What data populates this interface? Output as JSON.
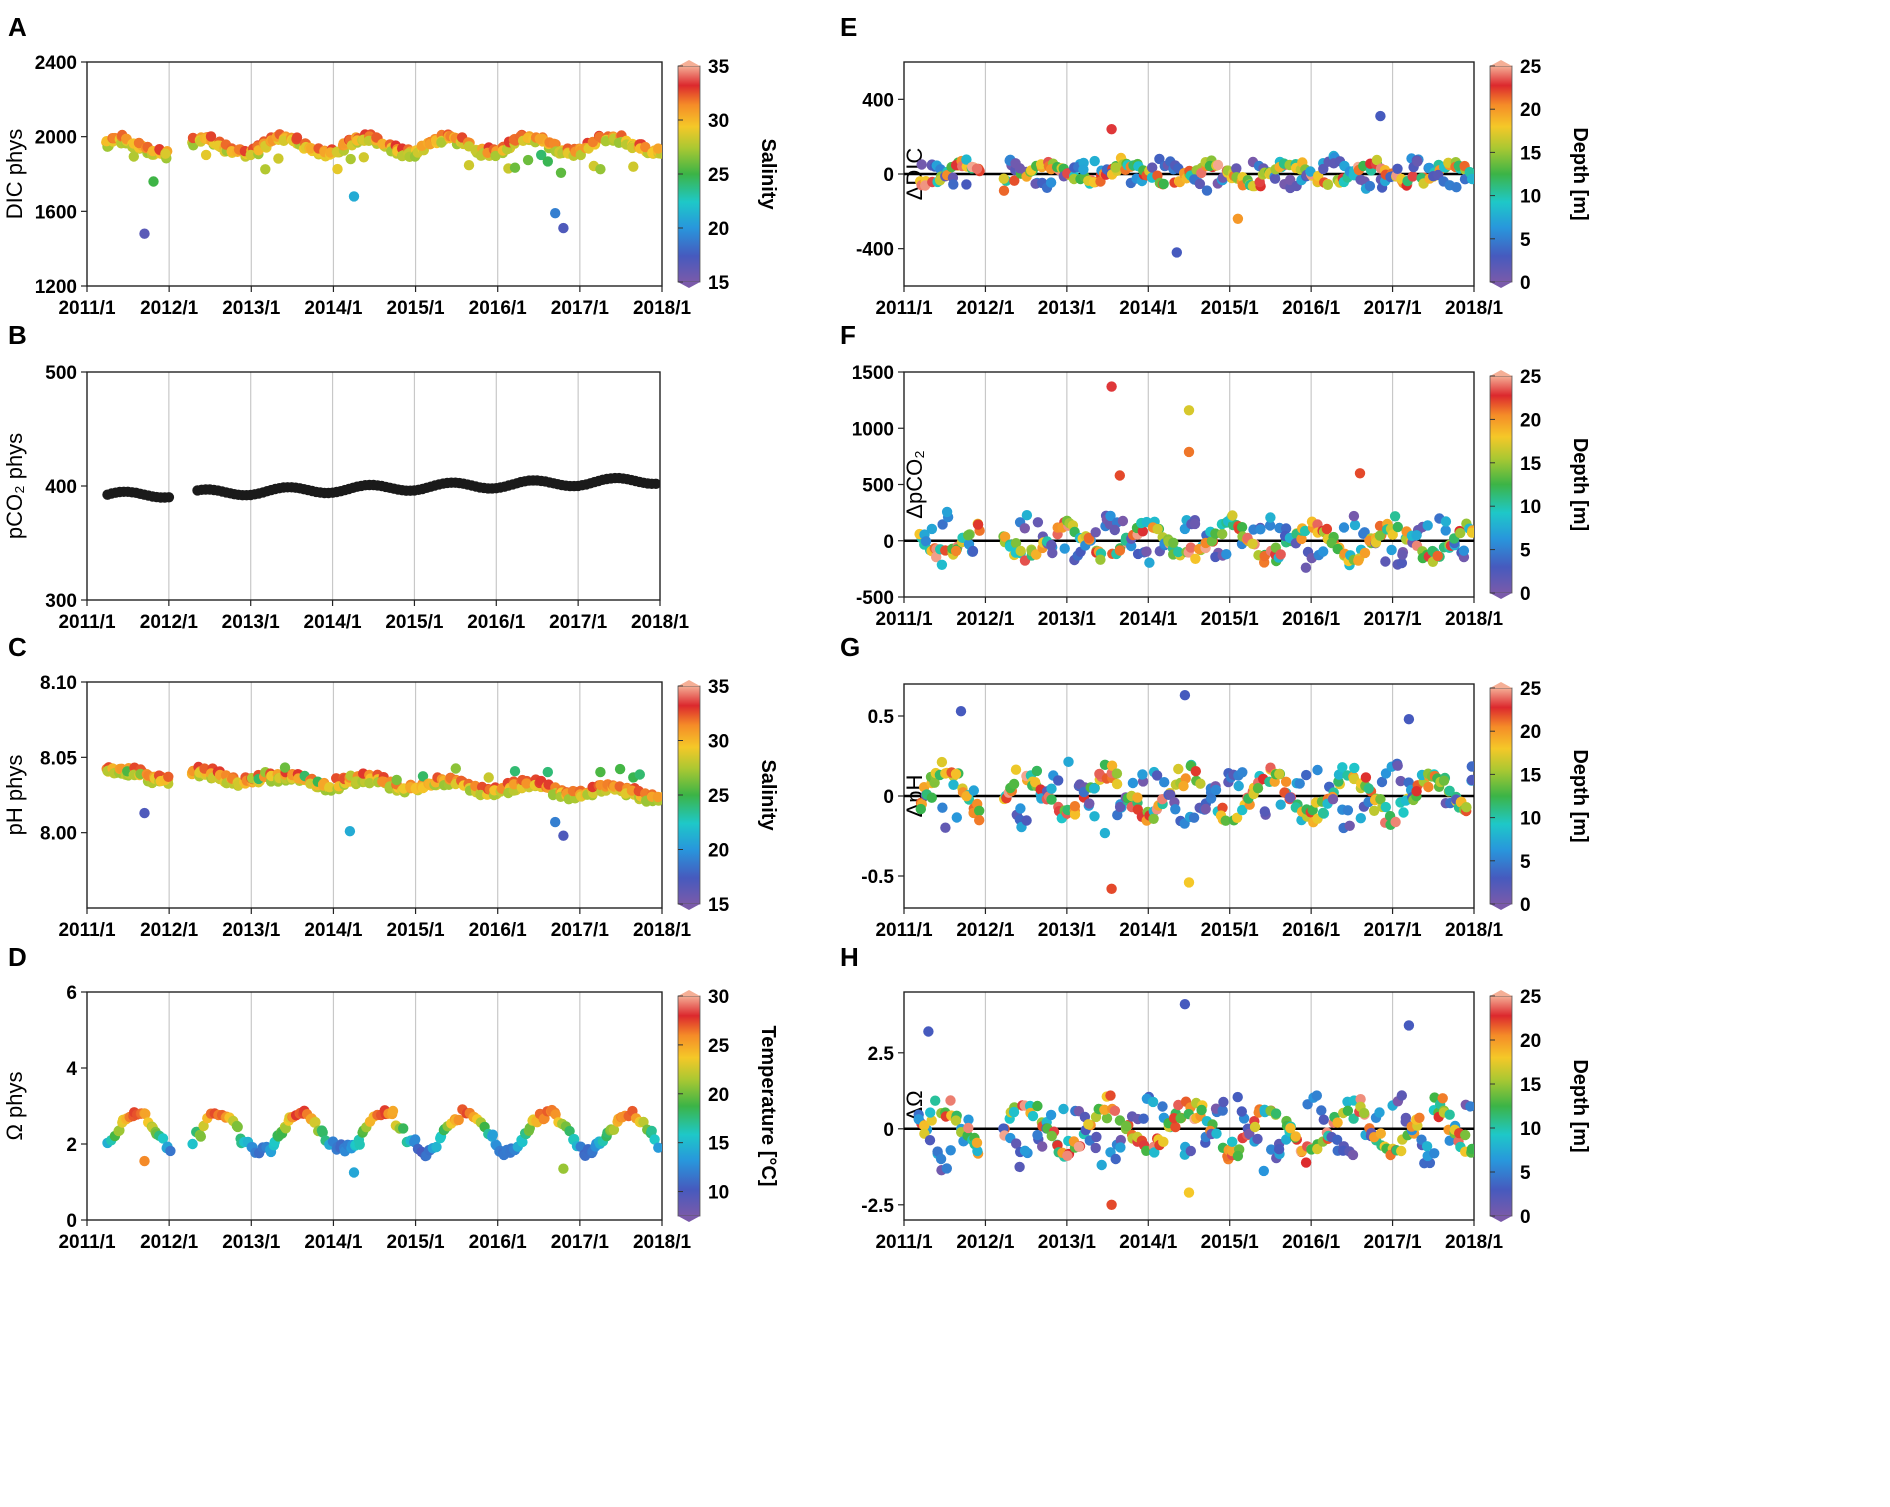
{
  "x_tick_labels": [
    "2011/1",
    "2012/1",
    "2013/1",
    "2014/1",
    "2015/1",
    "2016/1",
    "2017/1",
    "2018/1"
  ],
  "chart_data": [
    {
      "id": "A",
      "panel_label": "A",
      "type": "scatter",
      "ylabel": "DIC phys",
      "ylim": [
        1200,
        2400
      ],
      "yticks": [
        1200,
        1600,
        2000,
        2400
      ],
      "colorbar": {
        "label": "Salinity",
        "range": [
          15,
          35
        ],
        "ticks": [
          15,
          20,
          25,
          30,
          35
        ]
      },
      "x_range": [
        2011.0,
        2018.0
      ],
      "mode": "seasonal",
      "params": {
        "base": 1985,
        "amp": 40,
        "trend": 1.5,
        "spread": 45,
        "low": 2,
        "lowDrop": 180,
        "outliers": [
          [
            2011.7,
            1480,
            16.5
          ],
          [
            2014.25,
            1680,
            21
          ],
          [
            2016.7,
            1590,
            19
          ],
          [
            2016.8,
            1510,
            17
          ]
        ]
      },
      "x": [],
      "y": [],
      "c": []
    },
    {
      "id": "B",
      "panel_label": "B",
      "type": "scatter",
      "ylabel": "pCO₂ phys",
      "ylim": [
        300,
        500
      ],
      "yticks": [
        300,
        400,
        500
      ],
      "colorbar": null,
      "x_range": [
        2011.0,
        2018.0
      ],
      "mode": "co2",
      "params": {
        "base": 391,
        "trend": 2,
        "amp": 3
      },
      "series_color": "#1a1a1a",
      "x": [],
      "y": []
    },
    {
      "id": "C",
      "panel_label": "C",
      "type": "scatter",
      "ylabel": "pH phys",
      "ylim": [
        7.95,
        8.1
      ],
      "yticks": [
        8.0,
        8.05,
        8.1
      ],
      "ytick_labels": [
        "8.00",
        "8.05",
        "8.10"
      ],
      "colorbar": {
        "label": "Salinity",
        "range": [
          15,
          35
        ],
        "ticks": [
          15,
          20,
          25,
          30,
          35
        ]
      },
      "x_range": [
        2011.0,
        2018.0
      ],
      "mode": "seasonal",
      "params": {
        "base": 8.045,
        "amp": 0.003,
        "trend": -0.002,
        "spread": 0.006,
        "low": 2,
        "lowDrop": 0.008,
        "outliers": [
          [
            2011.7,
            8.013,
            17
          ],
          [
            2014.2,
            8.001,
            21
          ],
          [
            2016.7,
            8.007,
            19
          ],
          [
            2016.8,
            7.998,
            17
          ]
        ]
      },
      "x": [],
      "y": [],
      "c": []
    },
    {
      "id": "D",
      "panel_label": "D",
      "type": "scatter",
      "ylabel": "Ω phys",
      "ylim": [
        0,
        6
      ],
      "yticks": [
        0,
        2,
        4,
        6
      ],
      "colorbar": {
        "label": "Temperature [°C]",
        "range": [
          7.5,
          30
        ],
        "ticks": [
          10,
          15,
          20,
          25,
          30
        ]
      },
      "x_range": [
        2011.0,
        2018.0
      ],
      "mode": "omega",
      "params": {
        "outliers": [
          [
            2011.7,
            1.55,
            26
          ],
          [
            2014.25,
            1.25,
            14
          ],
          [
            2016.8,
            1.35,
            21
          ]
        ]
      },
      "x": [],
      "y": [],
      "c": []
    },
    {
      "id": "E",
      "panel_label": "E",
      "type": "scatter",
      "ylabel": "ΔDIC",
      "ylim": [
        -600,
        600
      ],
      "yticks": [
        -400,
        0,
        400
      ],
      "colorbar": {
        "label": "Depth [m]",
        "range": [
          0,
          25
        ],
        "ticks": [
          0,
          5,
          10,
          15,
          20,
          25
        ]
      },
      "x_range": [
        2011.0,
        2018.0
      ],
      "mode": "anomaly",
      "zero_line": true,
      "params": {
        "amp": 90,
        "spread": 60,
        "phase": 0.0,
        "outliers": [
          [
            2013.55,
            240,
            23
          ],
          [
            2014.35,
            -420,
            3
          ],
          [
            2016.85,
            310,
            3
          ],
          [
            2015.1,
            -240,
            20
          ]
        ]
      },
      "x": [],
      "y": [],
      "c": []
    },
    {
      "id": "F",
      "panel_label": "F",
      "type": "scatter",
      "ylabel": "ΔpCO₂",
      "ylim": [
        -500,
        1500
      ],
      "yticks": [
        -500,
        0,
        500,
        1000,
        1500
      ],
      "colorbar": {
        "label": "Depth [m]",
        "range": [
          0,
          25
        ],
        "ticks": [
          0,
          5,
          10,
          15,
          20,
          25
        ]
      },
      "x_range": [
        2011.0,
        2018.0
      ],
      "mode": "anomaly",
      "zero_line": true,
      "params": {
        "amp": 250,
        "spread": 150,
        "phase": 0.25,
        "outliers": [
          [
            2013.55,
            1370,
            23
          ],
          [
            2014.5,
            1160,
            17
          ],
          [
            2014.5,
            790,
            21
          ],
          [
            2013.65,
            580,
            22
          ],
          [
            2016.6,
            600,
            22
          ]
        ]
      },
      "x": [],
      "y": [],
      "c": []
    },
    {
      "id": "G",
      "panel_label": "G",
      "type": "scatter",
      "ylabel": "ΔpH",
      "ylim": [
        -0.7,
        0.7
      ],
      "yticks": [
        -0.5,
        0,
        0.5
      ],
      "ytick_labels": [
        "-0.5",
        "0",
        "0.5"
      ],
      "colorbar": {
        "label": "Depth [m]",
        "range": [
          0,
          25
        ],
        "ticks": [
          0,
          5,
          10,
          15,
          20,
          25
        ]
      },
      "x_range": [
        2011.0,
        2018.0
      ],
      "mode": "anomaly",
      "zero_line": true,
      "params": {
        "amp": 0.22,
        "spread": 0.14,
        "phase": 0.75,
        "outliers": [
          [
            2011.7,
            0.53,
            3
          ],
          [
            2014.45,
            0.63,
            3
          ],
          [
            2013.55,
            -0.58,
            22
          ],
          [
            2014.5,
            -0.54,
            18
          ],
          [
            2017.2,
            0.48,
            3
          ]
        ]
      },
      "x": [],
      "y": [],
      "c": []
    },
    {
      "id": "H",
      "panel_label": "H",
      "type": "scatter",
      "ylabel": "ΔΩ",
      "ylim": [
        -3.0,
        4.5
      ],
      "yticks": [
        -2.5,
        0,
        2.5
      ],
      "ytick_labels": [
        "-2.5",
        "0",
        "2.5"
      ],
      "colorbar": {
        "label": "Depth [m]",
        "range": [
          0,
          25
        ],
        "ticks": [
          0,
          5,
          10,
          15,
          20,
          25
        ]
      },
      "x_range": [
        2011.0,
        2018.0
      ],
      "mode": "anomaly",
      "zero_line": true,
      "params": {
        "amp": 1.3,
        "spread": 0.8,
        "phase": 0.75,
        "outliers": [
          [
            2014.45,
            4.1,
            3
          ],
          [
            2013.55,
            -2.5,
            22
          ],
          [
            2017.2,
            3.4,
            3
          ],
          [
            2011.3,
            3.2,
            3
          ],
          [
            2014.5,
            -2.1,
            18
          ]
        ]
      },
      "x": [],
      "y": [],
      "c": []
    }
  ]
}
